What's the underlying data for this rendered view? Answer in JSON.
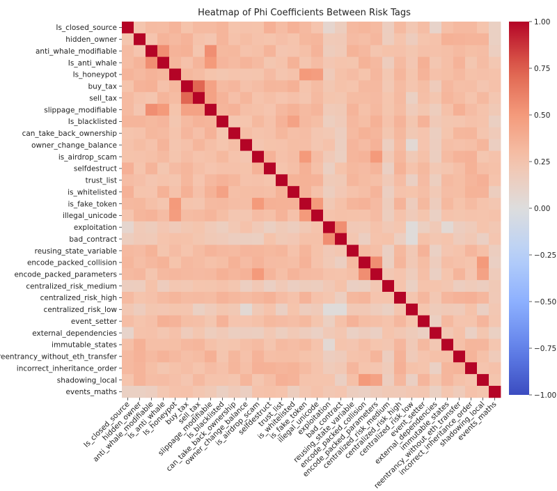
{
  "chart_data": {
    "type": "heatmap",
    "title": "Heatmap of Phi Coefficients Between Risk Tags",
    "labels": [
      "Is_closed_source",
      "hidden_owner",
      "anti_whale_modifiable",
      "Is_anti_whale",
      "Is_honeypot",
      "buy_tax",
      "sell_tax",
      "slippage_modifiable",
      "Is_blacklisted",
      "can_take_back_ownership",
      "owner_change_balance",
      "is_airdrop_scam",
      "selfdestruct",
      "trust_list",
      "is_whitelisted",
      "is_fake_token",
      "illegal_unicode",
      "exploitation",
      "bad_contract",
      "reusing_state_variable",
      "encode_packed_collision",
      "encode_packed_parameters",
      "centralized_risk_medium",
      "centralized_risk_high",
      "centralized_risk_low",
      "event_setter",
      "external_dependencies",
      "immutable_states",
      "reentrancy_without_eth_transfer",
      "incorrect_inheritance_order",
      "shadowing_local",
      "events_maths"
    ],
    "base_value": 0.3,
    "low_rows": [
      "exploitation",
      "bad_contract",
      "centralized_risk_medium",
      "centralized_risk_low",
      "external_dependencies",
      "events_maths"
    ],
    "overrides": [
      {
        "a": "anti_whale_modifiable",
        "b": "Is_anti_whale",
        "v": 0.55
      },
      {
        "a": "anti_whale_modifiable",
        "b": "slippage_modifiable",
        "v": 0.55
      },
      {
        "a": "Is_anti_whale",
        "b": "slippage_modifiable",
        "v": 0.5
      },
      {
        "a": "buy_tax",
        "b": "sell_tax",
        "v": 0.72
      },
      {
        "a": "buy_tax",
        "b": "slippage_modifiable",
        "v": 0.45
      },
      {
        "a": "sell_tax",
        "b": "slippage_modifiable",
        "v": 0.45
      },
      {
        "a": "Is_honeypot",
        "b": "is_fake_token",
        "v": 0.5
      },
      {
        "a": "Is_honeypot",
        "b": "illegal_unicode",
        "v": 0.48
      },
      {
        "a": "is_airdrop_scam",
        "b": "is_fake_token",
        "v": 0.5
      },
      {
        "a": "is_airdrop_scam",
        "b": "encode_packed_parameters",
        "v": 0.5
      },
      {
        "a": "is_fake_token",
        "b": "illegal_unicode",
        "v": 0.5
      },
      {
        "a": "encode_packed_collision",
        "b": "encode_packed_parameters",
        "v": 0.55
      },
      {
        "a": "encode_packed_collision",
        "b": "shadowing_local",
        "v": 0.5
      },
      {
        "a": "encode_packed_parameters",
        "b": "shadowing_local",
        "v": 0.45
      },
      {
        "a": "exploitation",
        "b": "bad_contract",
        "v": 0.55
      },
      {
        "a": "Is_blacklisted",
        "b": "is_whitelisted",
        "v": 0.45
      },
      {
        "a": "exploitation",
        "b": "centralized_risk_low",
        "v": 0.02
      },
      {
        "a": "bad_contract",
        "b": "centralized_risk_low",
        "v": 0.02
      },
      {
        "a": "exploitation",
        "b": "immutable_states",
        "v": 0.05
      },
      {
        "a": "owner_change_balance",
        "b": "centralized_risk_low",
        "v": 0.05
      },
      {
        "a": "exploitation",
        "b": "Is_closed_source",
        "v": 0.08
      },
      {
        "a": "external_dependencies",
        "b": "Is_closed_source",
        "v": 0.1
      }
    ],
    "vmin": -1.0,
    "vmax": 1.0,
    "colormap": "coolwarm",
    "colorbar_ticks": [
      "1.00",
      "0.75",
      "0.50",
      "0.25",
      "0.00",
      "−0.25",
      "−0.50",
      "−0.75",
      "−1.00"
    ],
    "colorbar_values": [
      1.0,
      0.75,
      0.5,
      0.25,
      0.0,
      -0.25,
      -0.5,
      -0.75,
      -1.0
    ]
  }
}
